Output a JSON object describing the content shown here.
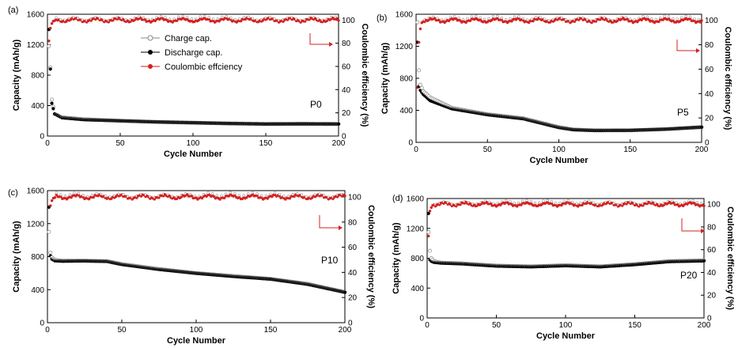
{
  "figure": {
    "legend": [
      {
        "label": "Charge cap.",
        "marker": "open-circle",
        "color": "#888888"
      },
      {
        "label": "Discharge cap.",
        "marker": "filled-circle",
        "color": "#000000"
      },
      {
        "label": "Coulombic effciency",
        "marker": "circle",
        "color": "#d62020"
      }
    ]
  },
  "chart_data": [
    {
      "type": "scatter",
      "panel_label": "(a)",
      "sample": "P0",
      "xlabel": "Cycle Number",
      "ylabel": "Capacity (mAh/g)",
      "y2label": "Coulombic efficiency (%)",
      "xlim": [
        0,
        200
      ],
      "ylim": [
        0,
        1600
      ],
      "y2lim": [
        0,
        105
      ],
      "xticks": [
        0,
        50,
        100,
        150,
        200
      ],
      "yticks": [
        0,
        400,
        800,
        1200,
        1600
      ],
      "y2ticks": [
        0,
        20,
        40,
        60,
        80,
        100
      ],
      "series": [
        {
          "name": "Charge cap.",
          "x": [
            1,
            2,
            3,
            5,
            10,
            25,
            50,
            75,
            100,
            125,
            150,
            175,
            200
          ],
          "y": [
            1180,
            900,
            480,
            290,
            245,
            220,
            200,
            185,
            175,
            165,
            158,
            160,
            158
          ]
        },
        {
          "name": "Discharge cap.",
          "x": [
            1,
            2,
            3,
            5,
            10,
            25,
            50,
            75,
            100,
            125,
            150,
            175,
            200
          ],
          "y": [
            1400,
            880,
            430,
            290,
            240,
            215,
            200,
            185,
            175,
            165,
            158,
            160,
            158
          ]
        },
        {
          "name": "Coulombic effciency",
          "x": [
            1,
            2,
            3,
            4,
            6,
            10,
            50,
            100,
            150,
            200
          ],
          "y": [
            82,
            93,
            97,
            99,
            100,
            100,
            100,
            100,
            100,
            100
          ]
        }
      ],
      "annotation": "arrow pointing to right axis"
    },
    {
      "type": "scatter",
      "panel_label": "(b)",
      "sample": "P5",
      "xlabel": "Cycle Number",
      "ylabel": "Capacity (mAh/g)",
      "y2label": "Coulombic efficiency (%)",
      "xlim": [
        0,
        200
      ],
      "ylim": [
        0,
        1600
      ],
      "y2lim": [
        0,
        105
      ],
      "xticks": [
        0,
        50,
        100,
        150,
        200
      ],
      "yticks": [
        0,
        400,
        800,
        1200,
        1600
      ],
      "y2ticks": [
        0,
        20,
        40,
        60,
        80,
        100
      ],
      "series": [
        {
          "name": "Charge cap.",
          "x": [
            1,
            2,
            3,
            5,
            10,
            25,
            50,
            75,
            100,
            110,
            125,
            150,
            175,
            200
          ],
          "y": [
            1500,
            900,
            720,
            640,
            560,
            430,
            350,
            300,
            190,
            160,
            150,
            150,
            165,
            190
          ]
        },
        {
          "name": "Discharge cap.",
          "x": [
            1,
            2,
            3,
            5,
            10,
            25,
            50,
            75,
            100,
            110,
            125,
            150,
            175,
            200
          ],
          "y": [
            1250,
            700,
            650,
            600,
            520,
            420,
            345,
            295,
            185,
            158,
            148,
            150,
            165,
            190
          ]
        },
        {
          "name": "Coulombic effciency",
          "x": [
            1,
            2,
            3,
            4,
            6,
            10,
            50,
            100,
            150,
            200
          ],
          "y": [
            45,
            82,
            93,
            98,
            100,
            100,
            100,
            100,
            100,
            100
          ]
        }
      ],
      "annotation": "arrow pointing to right axis"
    },
    {
      "type": "scatter",
      "panel_label": "(c)",
      "sample": "P10",
      "xlabel": "Cycle Number",
      "ylabel": "Capacity (mAh/g)",
      "y2label": "Coulombic efficiency (%)",
      "xlim": [
        0,
        200
      ],
      "ylim": [
        0,
        1600
      ],
      "y2lim": [
        0,
        105
      ],
      "xticks": [
        0,
        50,
        100,
        150,
        200
      ],
      "yticks": [
        0,
        400,
        800,
        1200,
        1600
      ],
      "y2ticks": [
        0,
        20,
        40,
        60,
        80,
        100
      ],
      "series": [
        {
          "name": "Charge cap.",
          "x": [
            1,
            2,
            3,
            5,
            10,
            25,
            40,
            50,
            75,
            100,
            125,
            150,
            175,
            200
          ],
          "y": [
            1100,
            850,
            790,
            760,
            750,
            750,
            745,
            710,
            650,
            600,
            565,
            530,
            470,
            370
          ]
        },
        {
          "name": "Discharge cap.",
          "x": [
            1,
            2,
            3,
            5,
            10,
            25,
            40,
            50,
            75,
            100,
            125,
            150,
            175,
            200
          ],
          "y": [
            1400,
            810,
            770,
            750,
            745,
            748,
            742,
            705,
            645,
            598,
            560,
            528,
            465,
            368
          ]
        },
        {
          "name": "Coulombic effciency",
          "x": [
            1,
            2,
            3,
            4,
            6,
            10,
            50,
            100,
            150,
            200
          ],
          "y": [
            72,
            93,
            97,
            99,
            100,
            100,
            100,
            100,
            100,
            100
          ]
        }
      ],
      "annotation": "arrow pointing to right axis"
    },
    {
      "type": "scatter",
      "panel_label": "(d)",
      "sample": "P20",
      "xlabel": "Cycle Number",
      "ylabel": "Capacity (mAh/g)",
      "y2label": "Coulombic efficiency (%)",
      "xlim": [
        0,
        200
      ],
      "ylim": [
        0,
        1600
      ],
      "y2lim": [
        0,
        105
      ],
      "xticks": [
        0,
        50,
        100,
        150,
        200
      ],
      "yticks": [
        0,
        400,
        800,
        1200,
        1600
      ],
      "y2ticks": [
        0,
        20,
        40,
        60,
        80,
        100
      ],
      "series": [
        {
          "name": "Charge cap.",
          "x": [
            1,
            2,
            3,
            5,
            10,
            25,
            50,
            75,
            100,
            125,
            150,
            175,
            200
          ],
          "y": [
            1150,
            900,
            800,
            760,
            740,
            730,
            700,
            690,
            705,
            690,
            720,
            760,
            770
          ]
        },
        {
          "name": "Discharge cap.",
          "x": [
            1,
            2,
            3,
            5,
            10,
            25,
            50,
            75,
            100,
            125,
            150,
            175,
            200
          ],
          "y": [
            1400,
            780,
            760,
            745,
            735,
            725,
            695,
            685,
            700,
            685,
            715,
            755,
            765
          ]
        },
        {
          "name": "Coulombic effciency",
          "x": [
            1,
            2,
            3,
            4,
            6,
            10,
            50,
            100,
            150,
            200
          ],
          "y": [
            72,
            94,
            97,
            99,
            100,
            100,
            100,
            100,
            100,
            100
          ]
        }
      ],
      "annotation": "arrow pointing to right axis"
    }
  ]
}
